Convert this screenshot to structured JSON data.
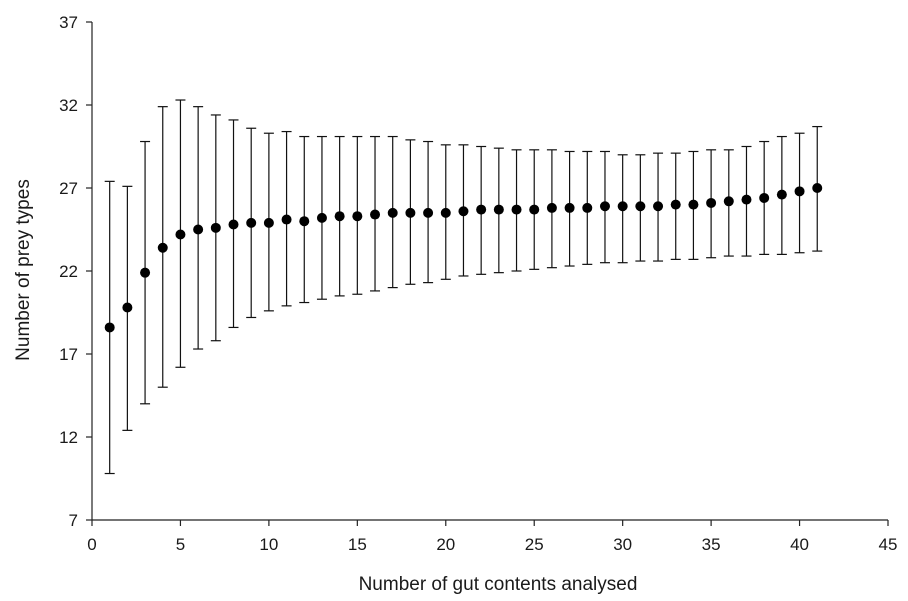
{
  "chart_data": {
    "type": "scatter",
    "title": "",
    "xlabel": "Number of gut contents analysed",
    "ylabel": "Number of prey types",
    "xlim": [
      0,
      45
    ],
    "ylim": [
      7,
      37
    ],
    "xticks": [
      0,
      5,
      10,
      15,
      20,
      25,
      30,
      35,
      40,
      45
    ],
    "yticks": [
      7,
      12,
      17,
      22,
      27,
      32,
      37
    ],
    "grid": false,
    "legend": "none",
    "marker_color": "#000000",
    "error_bars": true,
    "series": [
      {
        "x": [
          1,
          2,
          3,
          4,
          5,
          6,
          7,
          8,
          9,
          10,
          11,
          12,
          13,
          14,
          15,
          16,
          17,
          18,
          19,
          20,
          21,
          22,
          23,
          24,
          25,
          26,
          27,
          28,
          29,
          30,
          31,
          32,
          33,
          34,
          35,
          36,
          37,
          38,
          39,
          40,
          41
        ],
        "y": [
          18.6,
          19.8,
          21.9,
          23.4,
          24.2,
          24.5,
          24.6,
          24.8,
          24.9,
          24.9,
          25.1,
          25.0,
          25.2,
          25.3,
          25.3,
          25.4,
          25.5,
          25.5,
          25.5,
          25.5,
          25.6,
          25.7,
          25.7,
          25.7,
          25.7,
          25.8,
          25.8,
          25.8,
          25.9,
          25.9,
          25.9,
          25.9,
          26.0,
          26.0,
          26.1,
          26.2,
          26.3,
          26.4,
          26.6,
          26.8,
          27.0
        ],
        "y_low": [
          9.8,
          12.4,
          14.0,
          15.0,
          16.2,
          17.3,
          17.8,
          18.6,
          19.2,
          19.6,
          19.9,
          20.1,
          20.3,
          20.5,
          20.6,
          20.8,
          21.0,
          21.2,
          21.3,
          21.5,
          21.7,
          21.8,
          21.9,
          22.0,
          22.1,
          22.2,
          22.3,
          22.4,
          22.5,
          22.5,
          22.6,
          22.6,
          22.7,
          22.7,
          22.8,
          22.9,
          22.9,
          23.0,
          23.0,
          23.1,
          23.2
        ],
        "y_high": [
          27.4,
          27.1,
          29.8,
          31.9,
          32.3,
          31.9,
          31.4,
          31.1,
          30.6,
          30.3,
          30.4,
          30.1,
          30.1,
          30.1,
          30.1,
          30.1,
          30.1,
          29.9,
          29.8,
          29.6,
          29.6,
          29.5,
          29.4,
          29.3,
          29.3,
          29.3,
          29.2,
          29.2,
          29.2,
          29.0,
          29.0,
          29.1,
          29.1,
          29.2,
          29.3,
          29.3,
          29.5,
          29.8,
          30.1,
          30.3,
          30.7
        ]
      }
    ]
  }
}
